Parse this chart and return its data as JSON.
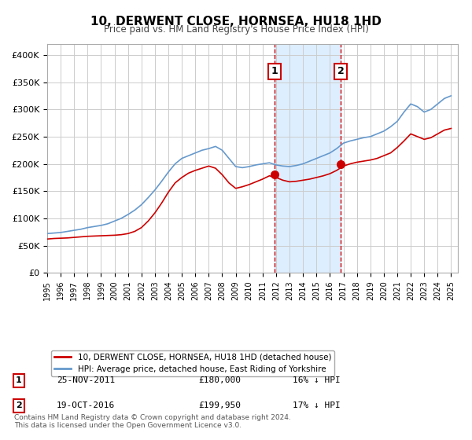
{
  "title": "10, DERWENT CLOSE, HORNSEA, HU18 1HD",
  "subtitle": "Price paid vs. HM Land Registry's House Price Index (HPI)",
  "xlabel": "",
  "ylabel": "",
  "ylim": [
    0,
    420000
  ],
  "xlim": [
    1995,
    2025.5
  ],
  "yticks": [
    0,
    50000,
    100000,
    150000,
    200000,
    250000,
    300000,
    350000,
    400000
  ],
  "ytick_labels": [
    "£0",
    "£50K",
    "£100K",
    "£150K",
    "£200K",
    "£250K",
    "£300K",
    "£350K",
    "£400K"
  ],
  "xticks": [
    1995,
    1996,
    1997,
    1998,
    1999,
    2000,
    2001,
    2002,
    2003,
    2004,
    2005,
    2006,
    2007,
    2008,
    2009,
    2010,
    2011,
    2012,
    2013,
    2014,
    2015,
    2016,
    2017,
    2018,
    2019,
    2020,
    2021,
    2022,
    2023,
    2024,
    2025
  ],
  "sale1_x": 2011.9,
  "sale1_y": 180000,
  "sale1_label": "1",
  "sale1_date": "25-NOV-2011",
  "sale1_price": "£180,000",
  "sale1_hpi": "16% ↓ HPI",
  "sale2_x": 2016.8,
  "sale2_y": 199950,
  "sale2_label": "2",
  "sale2_date": "19-OCT-2016",
  "sale2_price": "£199,950",
  "sale2_hpi": "17% ↓ HPI",
  "red_line_color": "#cc0000",
  "blue_line_color": "#6699cc",
  "shade_color": "#ddeeff",
  "grid_color": "#cccccc",
  "background_color": "#ffffff",
  "legend1_label": "10, DERWENT CLOSE, HORNSEA, HU18 1HD (detached house)",
  "legend2_label": "HPI: Average price, detached house, East Riding of Yorkshire",
  "footnote": "Contains HM Land Registry data © Crown copyright and database right 2024.\nThis data is licensed under the Open Government Licence v3.0.",
  "hpi_x": [
    1995,
    1995.5,
    1996,
    1996.5,
    1997,
    1997.5,
    1998,
    1998.5,
    1999,
    1999.5,
    2000,
    2000.5,
    2001,
    2001.5,
    2002,
    2002.5,
    2003,
    2003.5,
    2004,
    2004.5,
    2005,
    2005.5,
    2006,
    2006.5,
    2007,
    2007.5,
    2008,
    2008.5,
    2009,
    2009.5,
    2010,
    2010.5,
    2011,
    2011.5,
    2012,
    2012.5,
    2013,
    2013.5,
    2014,
    2014.5,
    2015,
    2015.5,
    2016,
    2016.5,
    2017,
    2017.5,
    2018,
    2018.5,
    2019,
    2019.5,
    2020,
    2020.5,
    2021,
    2021.5,
    2022,
    2022.5,
    2023,
    2023.5,
    2024,
    2024.5,
    2025
  ],
  "hpi_y": [
    72000,
    73000,
    74000,
    76000,
    78000,
    80000,
    83000,
    85000,
    87000,
    90000,
    95000,
    100000,
    107000,
    115000,
    125000,
    138000,
    152000,
    168000,
    185000,
    200000,
    210000,
    215000,
    220000,
    225000,
    228000,
    232000,
    225000,
    210000,
    195000,
    193000,
    195000,
    198000,
    200000,
    202000,
    198000,
    196000,
    195000,
    197000,
    200000,
    205000,
    210000,
    215000,
    220000,
    228000,
    238000,
    242000,
    245000,
    248000,
    250000,
    255000,
    260000,
    268000,
    278000,
    295000,
    310000,
    305000,
    295000,
    300000,
    310000,
    320000,
    325000
  ],
  "price_x": [
    1995,
    1995.5,
    1996,
    1996.5,
    1997,
    1997.5,
    1998,
    1998.5,
    1999,
    1999.5,
    2000,
    2000.5,
    2001,
    2001.5,
    2002,
    2002.5,
    2003,
    2003.5,
    2004,
    2004.5,
    2005,
    2005.5,
    2006,
    2006.5,
    2007,
    2007.5,
    2008,
    2008.5,
    2009,
    2009.5,
    2010,
    2010.5,
    2011,
    2011.5,
    2012,
    2012.5,
    2013,
    2013.5,
    2014,
    2014.5,
    2015,
    2015.5,
    2016,
    2016.5,
    2017,
    2017.5,
    2018,
    2018.5,
    2019,
    2019.5,
    2020,
    2020.5,
    2021,
    2021.5,
    2022,
    2022.5,
    2023,
    2023.5,
    2024,
    2024.5,
    2025
  ],
  "price_y": [
    62000,
    63000,
    63500,
    64000,
    65000,
    66000,
    67000,
    67500,
    68000,
    68500,
    69000,
    70000,
    72000,
    76000,
    83000,
    95000,
    110000,
    128000,
    148000,
    165000,
    175000,
    183000,
    188000,
    192000,
    196000,
    192000,
    180000,
    165000,
    155000,
    158000,
    162000,
    167000,
    172000,
    178000,
    175000,
    170000,
    167000,
    168000,
    170000,
    172000,
    175000,
    178000,
    182000,
    188000,
    196000,
    200000,
    203000,
    205000,
    207000,
    210000,
    215000,
    220000,
    230000,
    242000,
    255000,
    250000,
    245000,
    248000,
    255000,
    262000,
    265000
  ]
}
